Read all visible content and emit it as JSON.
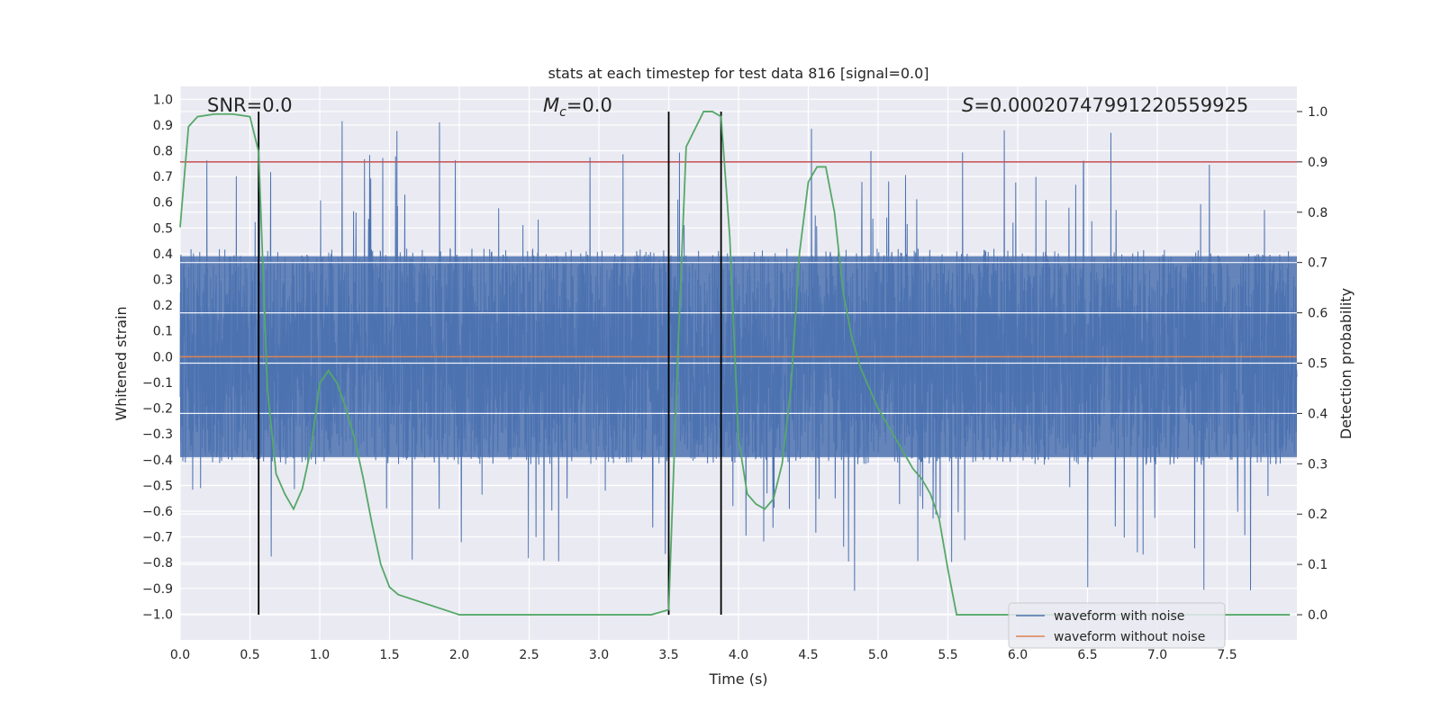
{
  "chart_data": {
    "type": "line",
    "title": "stats at each timestep for test data 816 [signal=0.0]",
    "xlabel": "Time (s)",
    "ylabel": "Whitened strain",
    "ylabel_right": "Detection probability",
    "xlim": [
      0.0,
      8.0
    ],
    "ylim": [
      -1.1,
      1.05
    ],
    "ylim_right": [
      -0.05,
      1.05
    ],
    "x_ticks": [
      0.0,
      0.5,
      1.0,
      1.5,
      2.0,
      2.5,
      3.0,
      3.5,
      4.0,
      4.5,
      5.0,
      5.5,
      6.0,
      6.5,
      7.0,
      7.5
    ],
    "x_tick_labels": [
      "0.0",
      "0.5",
      "1.0",
      "1.5",
      "2.0",
      "2.5",
      "3.0",
      "3.5",
      "4.0",
      "4.5",
      "5.0",
      "5.5",
      "6.0",
      "6.5",
      "7.0",
      "7.5"
    ],
    "y_ticks": [
      1.0,
      0.9,
      0.8,
      0.7,
      0.6,
      0.5,
      0.4,
      0.3,
      0.2,
      0.1,
      0.0,
      -0.1,
      -0.2,
      -0.3,
      -0.4,
      -0.5,
      -0.6,
      -0.7,
      -0.8,
      -0.9,
      -1.0
    ],
    "y_tick_labels": [
      "1.0",
      "0.9",
      "0.8",
      "0.7",
      "0.6",
      "0.5",
      "0.4",
      "0.3",
      "0.2",
      "0.1",
      "0.0",
      "−0.1",
      "−0.2",
      "−0.3",
      "−0.4",
      "−0.5",
      "−0.6",
      "−0.7",
      "−0.8",
      "−0.9",
      "−1.0"
    ],
    "y_right_ticks": [
      1.0,
      0.9,
      0.8,
      0.7,
      0.6,
      0.5,
      0.4,
      0.3,
      0.2,
      0.1,
      0.0
    ],
    "y_right_tick_labels": [
      "1.0",
      "0.9",
      "0.8",
      "0.7",
      "0.6",
      "0.5",
      "0.4",
      "0.3",
      "0.2",
      "0.1",
      "0.0"
    ],
    "annotations": {
      "snr": "SNR=0.0",
      "mc_symbol": "M",
      "mc_subscript": "c",
      "mc_value": "=0.0",
      "s_symbol": "S",
      "s_value": "=0.00020747991220559925"
    },
    "legend": {
      "placement": "lower-right",
      "entries": [
        {
          "label": "waveform with noise",
          "color": "#4c72b0"
        },
        {
          "label": "waveform without noise",
          "color": "#dd8452"
        }
      ]
    },
    "series": [
      {
        "name": "waveform with noise",
        "axis": "left",
        "color": "#4c72b0",
        "style": "dense-noise",
        "samples": 4096,
        "typical_range": [
          -0.42,
          0.42
        ],
        "peak_max": 0.93,
        "peak_min": -0.96
      },
      {
        "name": "waveform without noise",
        "axis": "left",
        "color": "#dd8452",
        "x": [
          0.0,
          8.0
        ],
        "y": [
          0.0,
          0.0
        ]
      },
      {
        "name": "detection probability",
        "axis": "right",
        "color": "#55a868",
        "x": [
          0.0,
          0.06,
          0.125,
          0.25,
          0.375,
          0.5,
          0.5625,
          0.625,
          0.6875,
          0.75,
          0.8125,
          0.875,
          0.9375,
          1.0,
          1.0625,
          1.125,
          1.1875,
          1.25,
          1.3125,
          1.375,
          1.4375,
          1.5,
          1.5625,
          2.0,
          2.5,
          3.0,
          3.25,
          3.375,
          3.4375,
          3.5,
          3.5625,
          3.625,
          3.75,
          3.8125,
          3.875,
          3.9375,
          4.0,
          4.0625,
          4.125,
          4.1875,
          4.25,
          4.3125,
          4.375,
          4.4375,
          4.5,
          4.5625,
          4.625,
          4.6875,
          4.75,
          4.8125,
          4.875,
          4.9375,
          5.0,
          5.0625,
          5.125,
          5.1875,
          5.25,
          5.3125,
          5.375,
          5.4375,
          5.5,
          5.5625,
          5.625,
          6.0,
          6.5,
          7.0,
          7.5,
          7.95
        ],
        "y": [
          0.77,
          0.97,
          0.99,
          0.995,
          0.995,
          0.99,
          0.92,
          0.45,
          0.28,
          0.24,
          0.21,
          0.25,
          0.33,
          0.46,
          0.485,
          0.46,
          0.41,
          0.35,
          0.27,
          0.18,
          0.1,
          0.055,
          0.04,
          0.0,
          0.0,
          0.0,
          0.0,
          0.0,
          0.005,
          0.01,
          0.5,
          0.93,
          1.0,
          1.0,
          0.99,
          0.75,
          0.35,
          0.24,
          0.22,
          0.21,
          0.23,
          0.3,
          0.45,
          0.72,
          0.86,
          0.89,
          0.89,
          0.8,
          0.64,
          0.55,
          0.49,
          0.45,
          0.41,
          0.38,
          0.35,
          0.32,
          0.29,
          0.27,
          0.24,
          0.19,
          0.09,
          0.0,
          0.0,
          0.0,
          0.0,
          0.0,
          0.0,
          0.0
        ]
      },
      {
        "name": "detection threshold",
        "axis": "right",
        "color": "#c44e52",
        "x": [
          0.0,
          8.0
        ],
        "y": [
          0.9,
          0.9
        ]
      }
    ],
    "event_markers": {
      "axis": "right",
      "color": "#000000",
      "x": [
        0.5625,
        3.5,
        3.875
      ],
      "y_range": [
        0.0,
        1.0
      ]
    }
  }
}
